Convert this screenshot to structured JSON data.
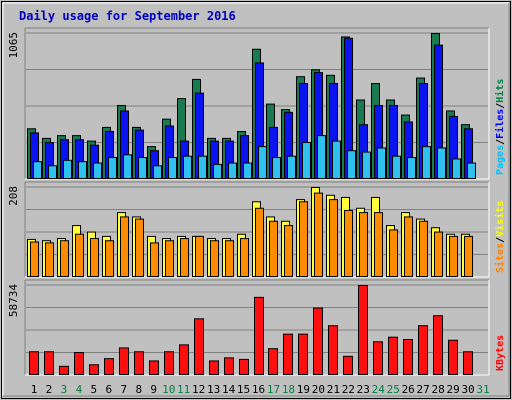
{
  "chart_data": {
    "type": "bar",
    "title": "Daily usage for September 2016",
    "x": [
      1,
      2,
      3,
      4,
      5,
      6,
      7,
      8,
      9,
      10,
      11,
      12,
      13,
      14,
      15,
      16,
      17,
      18,
      19,
      20,
      21,
      22,
      23,
      24,
      25,
      26,
      27,
      28,
      29,
      30,
      31
    ],
    "weekend_days": [
      3,
      4,
      10,
      11,
      17,
      18,
      24,
      25,
      31
    ],
    "panels": [
      {
        "id": "hits-files-pages",
        "ymax": 1065,
        "ymax_label": "1065",
        "legend": [
          "Pages",
          "Files",
          "Hits"
        ],
        "legend_colors": [
          "#00c0ff",
          "#0000ff",
          "#008040"
        ],
        "series": [
          {
            "name": "Hits",
            "color": "#1a7a50",
            "values": [
              370,
              300,
              320,
              320,
              280,
              380,
              540,
              380,
              240,
              440,
              590,
              730,
              300,
              300,
              350,
              950,
              550,
              510,
              750,
              800,
              760,
              1040,
              580,
              700,
              580,
              470,
              740,
              1065,
              500,
              400
            ]
          },
          {
            "name": "Files",
            "color": "#0a14f0",
            "values": [
              340,
              270,
              290,
              290,
              250,
              350,
              500,
              360,
              210,
              390,
              280,
              630,
              280,
              280,
              320,
              850,
              380,
              490,
              700,
              780,
              700,
              1030,
              400,
              540,
              540,
              420,
              700,
              980,
              460,
              370
            ]
          },
          {
            "name": "Pages",
            "color": "#30c0f0",
            "values": [
              130,
              100,
              140,
              130,
              120,
              160,
              180,
              160,
              100,
              160,
              170,
              170,
              110,
              120,
              120,
              240,
              160,
              170,
              270,
              320,
              280,
              210,
              200,
              230,
              170,
              160,
              240,
              230,
              150,
              120
            ]
          }
        ]
      },
      {
        "id": "visits-sites",
        "ymax": 208,
        "ymax_label": "208",
        "legend": [
          "Sites",
          "Visits"
        ],
        "legend_colors": [
          "#ff8000",
          "#ffff00"
        ],
        "series": [
          {
            "name": "Visits",
            "color": "#ffff40",
            "values": [
              88,
              85,
              90,
              120,
              105,
              95,
              150,
              140,
              95,
              90,
              95,
              95,
              90,
              90,
              100,
              175,
              140,
              130,
              180,
              208,
              190,
              185,
              160,
              185,
              120,
              150,
              135,
              115,
              100,
              100
            ]
          },
          {
            "name": "Sites",
            "color": "#ff8c00",
            "values": [
              82,
              80,
              85,
              100,
              90,
              85,
              140,
              135,
              80,
              85,
              90,
              95,
              85,
              85,
              90,
              160,
              130,
              120,
              175,
              195,
              180,
              155,
              150,
              150,
              110,
              140,
              130,
              105,
              95,
              95
            ]
          }
        ]
      },
      {
        "id": "kbytes",
        "ymax": 58734,
        "ymax_label": "58734",
        "legend": [
          "KBytes"
        ],
        "legend_colors": [
          "#ff0000"
        ],
        "series": [
          {
            "name": "KBytes",
            "color": "#ff1010",
            "values": [
              15500,
              15500,
              6000,
              15000,
              7000,
              11000,
              18000,
              15500,
              9500,
              15500,
              20000,
              37000,
              9500,
              11500,
              10500,
              51000,
              17500,
              27000,
              27000,
              44000,
              32500,
              12500,
              58734,
              22000,
              25000,
              23500,
              32500,
              39000,
              23000,
              15500
            ]
          }
        ]
      }
    ]
  }
}
